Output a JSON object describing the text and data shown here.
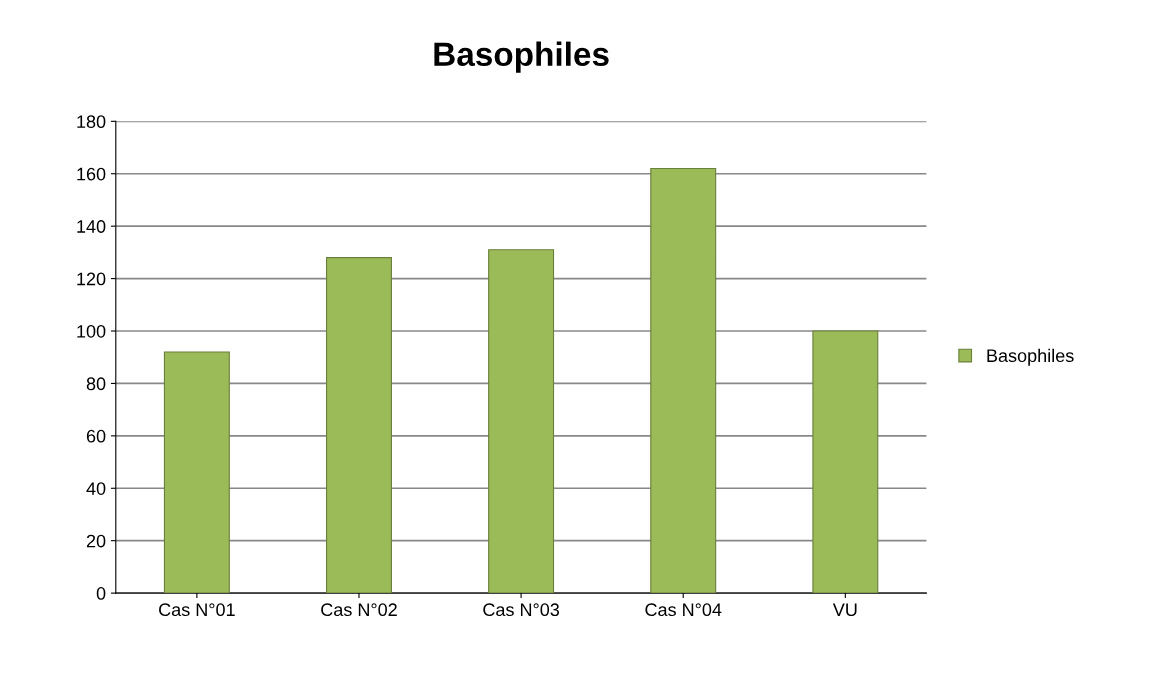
{
  "chart_data": {
    "type": "bar",
    "title": "Basophiles",
    "categories": [
      "Cas N°01",
      "Cas N°02",
      "Cas N°03",
      "Cas N°04",
      "VU"
    ],
    "series": [
      {
        "name": "Basophiles",
        "color": "#9bbb59",
        "values": [
          92,
          128,
          131,
          162,
          100
        ]
      }
    ],
    "ylim": [
      0,
      180
    ],
    "yticks": [
      0,
      20,
      40,
      60,
      80,
      100,
      120,
      140,
      160,
      180
    ],
    "grid": "y",
    "legend": "right"
  }
}
